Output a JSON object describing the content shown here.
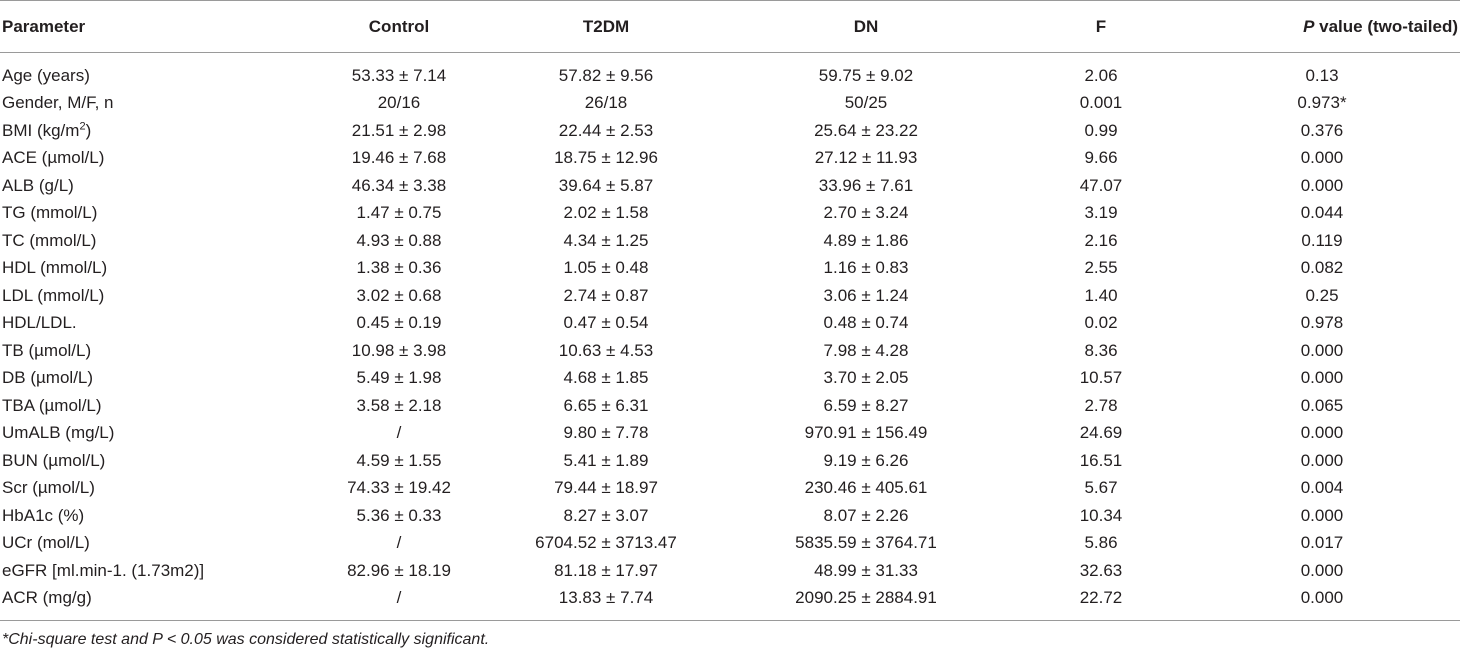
{
  "table": {
    "headers": {
      "parameter": "Parameter",
      "control": "Control",
      "t2dm": "T2DM",
      "dn": "DN",
      "f": "F",
      "p_italic": "P",
      "p_rest": " value (two-tailed)"
    },
    "rows": [
      {
        "param": "Age (years)",
        "sup": "",
        "param_after": "",
        "control": "53.33 ± 7.14",
        "t2dm": "57.82 ± 9.56",
        "dn": "59.75 ± 9.02",
        "f": "2.06",
        "p": "0.13"
      },
      {
        "param": "Gender, M/F, n",
        "sup": "",
        "param_after": "",
        "control": "20/16",
        "t2dm": "26/18",
        "dn": "50/25",
        "f": "0.001",
        "p": "0.973*"
      },
      {
        "param": "BMI (kg/m",
        "sup": "2",
        "param_after": ")",
        "control": "21.51 ± 2.98",
        "t2dm": "22.44 ± 2.53",
        "dn": "25.64 ± 23.22",
        "f": "0.99",
        "p": "0.376"
      },
      {
        "param": "ACE (µmol/L)",
        "sup": "",
        "param_after": "",
        "control": "19.46 ± 7.68",
        "t2dm": "18.75 ± 12.96",
        "dn": "27.12 ± 11.93",
        "f": "9.66",
        "p": "0.000"
      },
      {
        "param": "ALB (g/L)",
        "sup": "",
        "param_after": "",
        "control": "46.34 ± 3.38",
        "t2dm": "39.64 ± 5.87",
        "dn": "33.96 ± 7.61",
        "f": "47.07",
        "p": "0.000"
      },
      {
        "param": "TG (mmol/L)",
        "sup": "",
        "param_after": "",
        "control": "1.47 ± 0.75",
        "t2dm": "2.02 ± 1.58",
        "dn": "2.70 ± 3.24",
        "f": "3.19",
        "p": "0.044"
      },
      {
        "param": "TC (mmol/L)",
        "sup": "",
        "param_after": "",
        "control": "4.93 ± 0.88",
        "t2dm": "4.34 ± 1.25",
        "dn": "4.89 ± 1.86",
        "f": "2.16",
        "p": "0.119"
      },
      {
        "param": "HDL (mmol/L)",
        "sup": "",
        "param_after": "",
        "control": "1.38 ± 0.36",
        "t2dm": "1.05 ± 0.48",
        "dn": "1.16 ± 0.83",
        "f": "2.55",
        "p": "0.082"
      },
      {
        "param": "LDL (mmol/L)",
        "sup": "",
        "param_after": "",
        "control": "3.02 ± 0.68",
        "t2dm": "2.74 ± 0.87",
        "dn": "3.06 ± 1.24",
        "f": "1.40",
        "p": "0.25"
      },
      {
        "param": "HDL/LDL.",
        "sup": "",
        "param_after": "",
        "control": "0.45 ± 0.19",
        "t2dm": "0.47 ± 0.54",
        "dn": "0.48 ± 0.74",
        "f": "0.02",
        "p": "0.978"
      },
      {
        "param": "TB (µmol/L)",
        "sup": "",
        "param_after": "",
        "control": "10.98 ± 3.98",
        "t2dm": "10.63 ± 4.53",
        "dn": "7.98 ± 4.28",
        "f": "8.36",
        "p": "0.000"
      },
      {
        "param": "DB (µmol/L)",
        "sup": "",
        "param_after": "",
        "control": "5.49 ± 1.98",
        "t2dm": "4.68 ± 1.85",
        "dn": "3.70 ± 2.05",
        "f": "10.57",
        "p": "0.000"
      },
      {
        "param": "TBA (µmol/L)",
        "sup": "",
        "param_after": "",
        "control": "3.58 ± 2.18",
        "t2dm": "6.65 ± 6.31",
        "dn": "6.59 ± 8.27",
        "f": "2.78",
        "p": "0.065"
      },
      {
        "param": "UmALB (mg/L)",
        "sup": "",
        "param_after": "",
        "control": "/",
        "t2dm": "9.80 ± 7.78",
        "dn": "970.91 ± 156.49",
        "f": "24.69",
        "p": "0.000"
      },
      {
        "param": "BUN (µmol/L)",
        "sup": "",
        "param_after": "",
        "control": "4.59 ± 1.55",
        "t2dm": "5.41 ± 1.89",
        "dn": "9.19 ± 6.26",
        "f": "16.51",
        "p": "0.000"
      },
      {
        "param": "Scr (µmol/L)",
        "sup": "",
        "param_after": "",
        "control": "74.33 ± 19.42",
        "t2dm": "79.44 ± 18.97",
        "dn": "230.46 ± 405.61",
        "f": "5.67",
        "p": "0.004"
      },
      {
        "param": "HbA1c (%)",
        "sup": "",
        "param_after": "",
        "control": "5.36 ± 0.33",
        "t2dm": "8.27 ± 3.07",
        "dn": "8.07 ± 2.26",
        "f": "10.34",
        "p": "0.000"
      },
      {
        "param": "UCr (mol/L)",
        "sup": "",
        "param_after": "",
        "control": "/",
        "t2dm": "6704.52 ± 3713.47",
        "dn": "5835.59 ± 3764.71",
        "f": "5.86",
        "p": "0.017"
      },
      {
        "param": "eGFR [ml.min-1. (1.73m2)]",
        "sup": "",
        "param_after": "",
        "control": "82.96 ± 18.19",
        "t2dm": "81.18 ± 17.97",
        "dn": "48.99 ± 31.33",
        "f": "32.63",
        "p": "0.000"
      },
      {
        "param": "ACR (mg/g)",
        "sup": "",
        "param_after": "",
        "control": "/",
        "t2dm": "13.83 ± 7.74",
        "dn": "2090.25 ± 2884.91",
        "f": "22.72",
        "p": "0.000"
      }
    ],
    "footnote": "*Chi-square test and P < 0.05 was considered statistically significant."
  }
}
